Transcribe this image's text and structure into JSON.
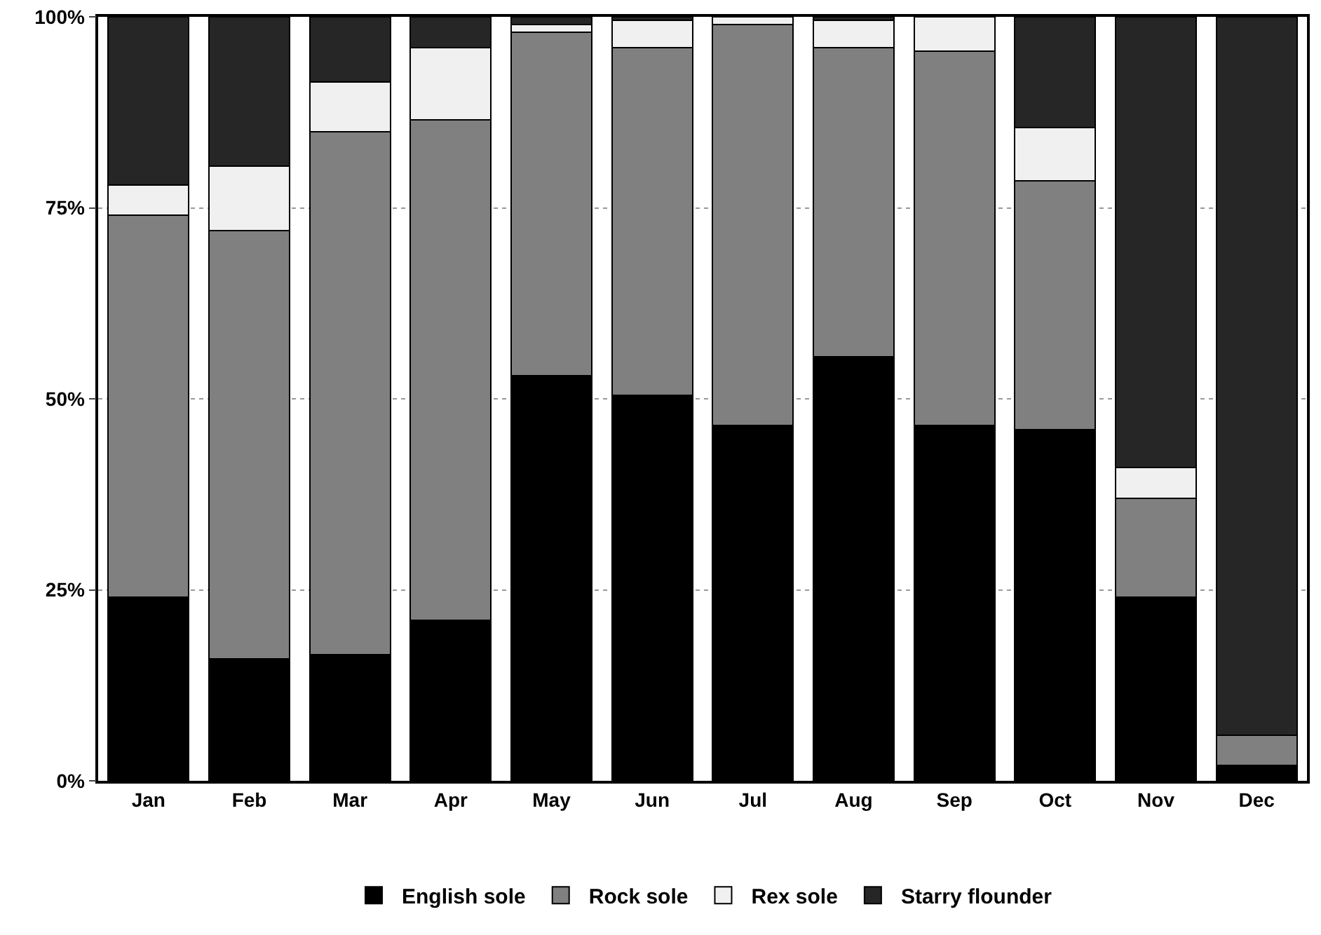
{
  "chart_data": {
    "type": "bar",
    "stacked": true,
    "categories": [
      "Jan",
      "Feb",
      "Mar",
      "Apr",
      "May",
      "Jun",
      "Jul",
      "Aug",
      "Sep",
      "Oct",
      "Nov",
      "Dec"
    ],
    "series": [
      {
        "name": "English sole",
        "color": "#000000",
        "values": [
          24,
          16,
          16.5,
          21,
          53,
          50.5,
          46.5,
          55.5,
          46.5,
          46,
          24,
          2
        ]
      },
      {
        "name": "Rock sole",
        "color": "#808080",
        "values": [
          50,
          56,
          68.5,
          65.5,
          45,
          45.5,
          52.5,
          40.5,
          49,
          32.5,
          13,
          4
        ]
      },
      {
        "name": "Rex sole",
        "color": "#f0f0f0",
        "values": [
          4,
          8.5,
          6.5,
          9.5,
          1,
          3.5,
          1,
          3.5,
          4.5,
          7,
          4,
          0
        ]
      },
      {
        "name": "Starry flounder",
        "color": "#262626",
        "values": [
          22,
          19.5,
          8.5,
          4,
          1,
          0.5,
          0,
          0.5,
          0,
          14.5,
          59,
          94
        ]
      }
    ],
    "ylim": [
      0,
      100
    ],
    "yticks": [
      {
        "value": 0,
        "label": "0%"
      },
      {
        "value": 25,
        "label": "25%"
      },
      {
        "value": 50,
        "label": "50%"
      },
      {
        "value": 75,
        "label": "75%"
      },
      {
        "value": 100,
        "label": "100%"
      }
    ],
    "grid": "y",
    "legend": "bottom"
  }
}
